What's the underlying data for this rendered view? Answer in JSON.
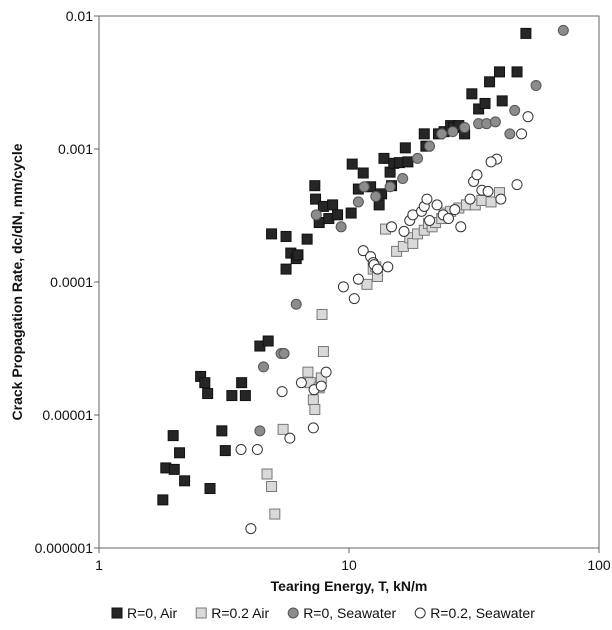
{
  "chart_data": {
    "type": "scatter",
    "xscale": "log",
    "yscale": "log",
    "xlim": [
      1,
      100
    ],
    "ylim": [
      1e-06,
      0.01
    ],
    "x_ticks": [
      {
        "value": 1,
        "label": "1"
      },
      {
        "value": 10,
        "label": "10"
      },
      {
        "value": 100,
        "label": "100"
      }
    ],
    "y_ticks": [
      {
        "value": 1e-06,
        "label": "0.000001"
      },
      {
        "value": 1e-05,
        "label": "0.00001"
      },
      {
        "value": 0.0001,
        "label": "0.0001"
      },
      {
        "value": 0.001,
        "label": "0.001"
      },
      {
        "value": 0.01,
        "label": "0.01"
      }
    ],
    "xlabel": "Tearing Energy, T, kN/m",
    "ylabel": "Crack Propagation Rate, dc/dN, mm/cycle",
    "grid": false,
    "legend_position": "bottom",
    "series": [
      {
        "name": "R=0, Air",
        "marker": "square",
        "fill": "#262626",
        "stroke": "#111111",
        "points": [
          [
            1.8,
            2.3e-06
          ],
          [
            1.85,
            4e-06
          ],
          [
            1.98,
            7e-06
          ],
          [
            2.0,
            3.9e-06
          ],
          [
            2.1,
            5.2e-06
          ],
          [
            2.2,
            3.2e-06
          ],
          [
            2.55,
            1.95e-05
          ],
          [
            2.65,
            1.75e-05
          ],
          [
            2.72,
            1.45e-05
          ],
          [
            2.78,
            2.8e-06
          ],
          [
            3.1,
            7.6e-06
          ],
          [
            3.2,
            5.4e-06
          ],
          [
            3.4,
            1.4e-05
          ],
          [
            3.72,
            1.75e-05
          ],
          [
            3.85,
            1.4e-05
          ],
          [
            4.4,
            3.3e-05
          ],
          [
            4.75,
            3.6e-05
          ],
          [
            4.9,
            0.00023
          ],
          [
            5.6,
            0.00022
          ],
          [
            5.6,
            0.000125
          ],
          [
            5.85,
            0.000165
          ],
          [
            6.15,
            0.00015
          ],
          [
            6.25,
            0.00016
          ],
          [
            6.8,
            0.00021
          ],
          [
            7.3,
            0.00053
          ],
          [
            7.35,
            0.00042
          ],
          [
            7.6,
            0.00028
          ],
          [
            7.9,
            0.00037
          ],
          [
            8.3,
            0.0003
          ],
          [
            8.6,
            0.00038
          ],
          [
            9.0,
            0.00032
          ],
          [
            10.2,
            0.00033
          ],
          [
            10.3,
            0.00077
          ],
          [
            10.9,
            0.0005
          ],
          [
            11.4,
            0.00066
          ],
          [
            12.2,
            0.00052
          ],
          [
            13.2,
            0.00038
          ],
          [
            13.5,
            0.00046
          ],
          [
            13.8,
            0.00085
          ],
          [
            14.6,
            0.00067
          ],
          [
            14.8,
            0.00053
          ],
          [
            15.1,
            0.00078
          ],
          [
            15.9,
            0.00079
          ],
          [
            16.8,
            0.00102
          ],
          [
            17.2,
            0.0008
          ],
          [
            20.0,
            0.0013
          ],
          [
            20.3,
            0.00105
          ],
          [
            22.8,
            0.0013
          ],
          [
            24.0,
            0.00135
          ],
          [
            25.5,
            0.0015
          ],
          [
            26.2,
            0.00145
          ],
          [
            27.5,
            0.0015
          ],
          [
            29.0,
            0.0013
          ],
          [
            31.0,
            0.0026
          ],
          [
            33.0,
            0.002
          ],
          [
            35.0,
            0.0022
          ],
          [
            36.5,
            0.0032
          ],
          [
            40.0,
            0.0038
          ],
          [
            41.0,
            0.0023
          ],
          [
            47.0,
            0.0038
          ],
          [
            51.0,
            0.0074
          ]
        ]
      },
      {
        "name": "R=0.2 Air",
        "marker": "square",
        "fill": "#d9d9d9",
        "stroke": "#777777",
        "points": [
          [
            4.7,
            3.6e-06
          ],
          [
            4.9,
            2.9e-06
          ],
          [
            5.05,
            1.8e-06
          ],
          [
            5.45,
            7.8e-06
          ],
          [
            6.85,
            2.1e-05
          ],
          [
            7.0,
            1.75e-05
          ],
          [
            7.2,
            1.3e-05
          ],
          [
            7.3,
            1.1e-05
          ],
          [
            7.6,
            1.6e-05
          ],
          [
            7.75,
            1.9e-05
          ],
          [
            7.8,
            5.7e-05
          ],
          [
            7.9,
            3e-05
          ],
          [
            11.8,
            9.6e-05
          ],
          [
            12.5,
            0.000125
          ],
          [
            12.8,
            0.00013
          ],
          [
            13.0,
            0.00011
          ],
          [
            14.0,
            0.00025
          ],
          [
            15.5,
            0.00017
          ],
          [
            16.5,
            0.000185
          ],
          [
            17.5,
            0.000215
          ],
          [
            18.0,
            0.000195
          ],
          [
            18.8,
            0.00023
          ],
          [
            20.0,
            0.000245
          ],
          [
            20.8,
            0.000275
          ],
          [
            21.5,
            0.00026
          ],
          [
            22.2,
            0.00028
          ],
          [
            23.5,
            0.0003
          ],
          [
            24.0,
            0.00033
          ],
          [
            25.5,
            0.00034
          ],
          [
            27.5,
            0.00036
          ],
          [
            29.5,
            0.00038
          ],
          [
            32.0,
            0.00038
          ],
          [
            34.0,
            0.00041
          ],
          [
            37.0,
            0.0004
          ],
          [
            40.0,
            0.00047
          ]
        ]
      },
      {
        "name": "R=0, Seawater",
        "marker": "circle",
        "fill": "#8c8c8c",
        "stroke": "#555555",
        "points": [
          [
            4.4,
            7.6e-06
          ],
          [
            4.55,
            2.3e-05
          ],
          [
            5.35,
            2.9e-05
          ],
          [
            5.5,
            2.9e-05
          ],
          [
            6.15,
            6.8e-05
          ],
          [
            7.4,
            0.00032
          ],
          [
            9.3,
            0.00026
          ],
          [
            10.9,
            0.0004
          ],
          [
            11.5,
            0.00052
          ],
          [
            12.8,
            0.00044
          ],
          [
            14.6,
            0.00052
          ],
          [
            16.4,
            0.0006
          ],
          [
            18.8,
            0.00085
          ],
          [
            21.0,
            0.00105
          ],
          [
            23.5,
            0.0013
          ],
          [
            26.0,
            0.00135
          ],
          [
            29.0,
            0.00145
          ],
          [
            33.0,
            0.00155
          ],
          [
            35.5,
            0.00155
          ],
          [
            38.5,
            0.0016
          ],
          [
            44.0,
            0.0013
          ],
          [
            46.0,
            0.00195
          ],
          [
            56.0,
            0.003
          ],
          [
            72.0,
            0.0078
          ]
        ]
      },
      {
        "name": "R=0.2, Seawater",
        "marker": "circle",
        "fill": "#ffffff",
        "stroke": "#333333",
        "points": [
          [
            3.7,
            5.5e-06
          ],
          [
            4.05,
            1.4e-06
          ],
          [
            4.3,
            5.5e-06
          ],
          [
            5.4,
            1.5e-05
          ],
          [
            5.8,
            6.7e-06
          ],
          [
            6.45,
            1.75e-05
          ],
          [
            7.2,
            8e-06
          ],
          [
            7.25,
            1.55e-05
          ],
          [
            7.75,
            1.65e-05
          ],
          [
            8.1,
            2.1e-05
          ],
          [
            9.5,
            9.2e-05
          ],
          [
            10.5,
            7.5e-05
          ],
          [
            10.9,
            0.000105
          ],
          [
            11.4,
            0.000172
          ],
          [
            12.2,
            0.000155
          ],
          [
            12.5,
            0.00014
          ],
          [
            12.6,
            0.000135
          ],
          [
            13.0,
            0.000125
          ],
          [
            14.3,
            0.00013
          ],
          [
            14.8,
            0.00026
          ],
          [
            16.6,
            0.00024
          ],
          [
            17.5,
            0.00029
          ],
          [
            18.0,
            0.00032
          ],
          [
            19.5,
            0.00034
          ],
          [
            20.0,
            0.00037
          ],
          [
            20.5,
            0.00042
          ],
          [
            21.0,
            0.00029
          ],
          [
            22.5,
            0.00038
          ],
          [
            23.8,
            0.00032
          ],
          [
            25.0,
            0.0003
          ],
          [
            26.5,
            0.00035
          ],
          [
            28.0,
            0.00026
          ],
          [
            30.5,
            0.00042
          ],
          [
            31.5,
            0.00057
          ],
          [
            32.5,
            0.00064
          ],
          [
            34.0,
            0.00049
          ],
          [
            36.0,
            0.00048
          ],
          [
            39.0,
            0.00084
          ],
          [
            37.0,
            0.0008
          ],
          [
            40.5,
            0.00042
          ],
          [
            47.0,
            0.00054
          ],
          [
            49.0,
            0.0013
          ],
          [
            52.0,
            0.00175
          ]
        ]
      }
    ]
  }
}
